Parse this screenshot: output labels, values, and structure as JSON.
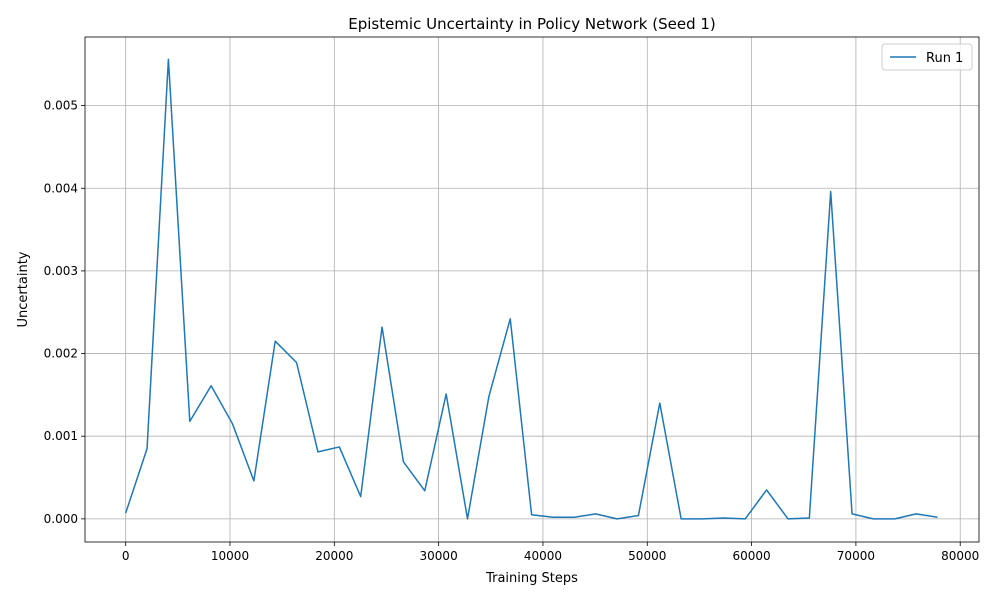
{
  "chart_data": {
    "type": "line",
    "title": "Epistemic Uncertainty in Policy Network (Seed 1)",
    "xlabel": "Training Steps",
    "ylabel": "Uncertainty",
    "xlim": [
      -3900,
      81800
    ],
    "ylim": [
      -0.00028,
      0.00583
    ],
    "xticks": [
      0,
      10000,
      20000,
      30000,
      40000,
      50000,
      60000,
      70000,
      80000
    ],
    "xtick_labels": [
      "0",
      "10000",
      "20000",
      "30000",
      "40000",
      "50000",
      "60000",
      "70000",
      "80000"
    ],
    "yticks": [
      0.0,
      0.001,
      0.002,
      0.003,
      0.004,
      0.005
    ],
    "ytick_labels": [
      "0.000",
      "0.001",
      "0.002",
      "0.003",
      "0.004",
      "0.005"
    ],
    "grid": true,
    "legend": "top-right",
    "series": [
      {
        "name": "Run 1",
        "color": "#1f77b4",
        "x": [
          0,
          2048,
          4096,
          6144,
          8192,
          10240,
          12288,
          14336,
          16384,
          18432,
          20480,
          22528,
          24576,
          26624,
          28672,
          30720,
          32768,
          34816,
          36864,
          38912,
          40960,
          43008,
          45056,
          47104,
          49152,
          51200,
          53248,
          55296,
          57344,
          59392,
          61440,
          63488,
          65536,
          67584,
          69632,
          71680,
          73728,
          75776,
          77824
        ],
        "y": [
          7e-05,
          0.00085,
          0.00556,
          0.00118,
          0.00161,
          0.00115,
          0.00046,
          0.00215,
          0.00189,
          0.00081,
          0.00087,
          0.00027,
          0.00232,
          0.00069,
          0.00034,
          0.00151,
          0.0,
          0.00148,
          0.00242,
          5e-05,
          2e-05,
          2e-05,
          6e-05,
          0.0,
          4e-05,
          0.0014,
          0.0,
          0.0,
          1e-05,
          0.0,
          0.00035,
          0.0,
          1e-05,
          0.00396,
          6e-05,
          0.0,
          0.0,
          6e-05,
          2e-05
        ]
      }
    ]
  }
}
